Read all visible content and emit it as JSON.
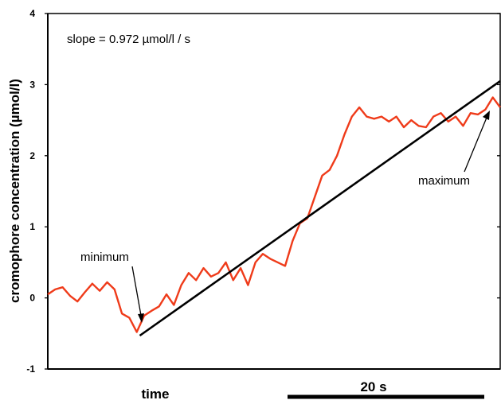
{
  "chart_data": {
    "type": "line",
    "ylabel": "cromophore concentration (µmol/l)",
    "xlabel": "time",
    "ylim": [
      -1,
      4
    ],
    "xlim": [
      0,
      61
    ],
    "y_ticks": [
      "-1",
      "0",
      "1",
      "2",
      "3",
      "4"
    ],
    "grid": false,
    "scale_bar": {
      "label": "20 s",
      "duration": 20
    },
    "annotations": {
      "slope_text": "slope = 0.972 µmol/l / s",
      "minimum_label": "minimum",
      "maximum_label": "maximum"
    },
    "colors": {
      "signal": "#ef3b1a",
      "fit": "#000000"
    },
    "series": [
      {
        "kind": "signal",
        "x": [
          0,
          1,
          2,
          3,
          4,
          5,
          6,
          7,
          8,
          9,
          10,
          11,
          12,
          13,
          14,
          15,
          16,
          17,
          18,
          19,
          20,
          21,
          22,
          23,
          24,
          25,
          26,
          27,
          28,
          29,
          30,
          31,
          32,
          33,
          34,
          35,
          36,
          37,
          38,
          39,
          40,
          41,
          42,
          43,
          44,
          45,
          46,
          47,
          48,
          49,
          50,
          51,
          52,
          53,
          54,
          55,
          56,
          57,
          58,
          59,
          60,
          61
        ],
        "y": [
          0.05,
          0.12,
          0.15,
          0.03,
          -0.05,
          0.08,
          0.2,
          0.1,
          0.22,
          0.12,
          -0.22,
          -0.28,
          -0.48,
          -0.25,
          -0.18,
          -0.12,
          0.05,
          -0.1,
          0.18,
          0.35,
          0.25,
          0.42,
          0.3,
          0.35,
          0.5,
          0.25,
          0.42,
          0.18,
          0.5,
          0.62,
          0.55,
          0.5,
          0.45,
          0.8,
          1.05,
          1.12,
          1.42,
          1.72,
          1.8,
          2.0,
          2.3,
          2.55,
          2.68,
          2.55,
          2.52,
          2.55,
          2.48,
          2.55,
          2.4,
          2.5,
          2.42,
          2.4,
          2.55,
          2.6,
          2.48,
          2.55,
          2.42,
          2.6,
          2.58,
          2.65,
          2.82,
          2.68
        ]
      },
      {
        "kind": "fit",
        "x": [
          12.4,
          61
        ],
        "y": [
          -0.53,
          3.05
        ]
      }
    ]
  }
}
